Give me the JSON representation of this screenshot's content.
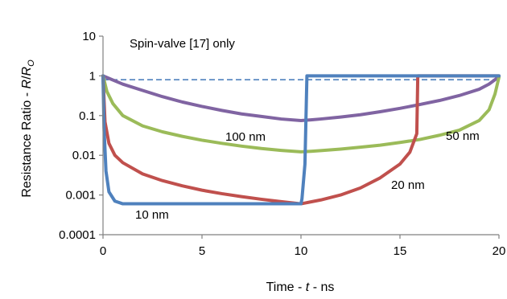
{
  "chart_data": {
    "type": "line",
    "title": "",
    "xlabel_parts": [
      "Time - ",
      "t",
      " - ns"
    ],
    "ylabel_parts": [
      "Resistance  Ratio - ",
      "R",
      "/",
      "R",
      "O"
    ],
    "x_range": [
      0,
      20
    ],
    "y_range": [
      0.0001,
      10
    ],
    "y_scale": "log",
    "x_ticks": [
      "0",
      "5",
      "10",
      "15",
      "20"
    ],
    "y_ticks": [
      "0.0001",
      "0.001",
      "0.01",
      "0.1",
      "1",
      "10"
    ],
    "grid": false,
    "legend": "none",
    "annotations": {
      "spin_valve": "Spin-valve  [17] only",
      "label_100": "100 nm",
      "label_50": "50 nm",
      "label_20": "20 nm",
      "label_10": "10 nm"
    },
    "reference_line": {
      "name": "Spin-valve [17] only",
      "style": "dashed",
      "color": "#4f81bd",
      "x": [
        0,
        20
      ],
      "y": [
        0.8,
        0.8
      ]
    },
    "series": [
      {
        "label": "100 nm",
        "color": "#8064a2",
        "x": [
          0,
          1,
          2,
          3,
          4,
          5,
          6,
          7,
          8,
          9,
          10,
          10.5,
          11,
          12,
          13,
          14,
          15,
          16,
          17,
          18,
          19,
          19.5,
          20
        ],
        "y": [
          1,
          0.62,
          0.43,
          0.3,
          0.22,
          0.17,
          0.135,
          0.11,
          0.095,
          0.082,
          0.075,
          0.078,
          0.082,
          0.092,
          0.105,
          0.125,
          0.152,
          0.19,
          0.24,
          0.32,
          0.46,
          0.62,
          0.95
        ]
      },
      {
        "label": "50 nm",
        "color": "#9bbb59",
        "x": [
          0,
          0.2,
          0.5,
          1,
          2,
          3,
          4,
          5,
          6,
          7,
          8,
          9,
          10,
          10.5,
          11,
          12,
          13,
          14,
          15,
          16,
          17,
          18,
          19,
          19.5,
          19.8,
          20
        ],
        "y": [
          1,
          0.4,
          0.2,
          0.1,
          0.055,
          0.039,
          0.03,
          0.024,
          0.02,
          0.017,
          0.0148,
          0.0133,
          0.0122,
          0.0126,
          0.0131,
          0.0143,
          0.016,
          0.018,
          0.021,
          0.025,
          0.032,
          0.043,
          0.075,
          0.14,
          0.35,
          0.92
        ]
      },
      {
        "label": "20 nm",
        "color": "#c0504d",
        "x": [
          0,
          0.1,
          0.3,
          0.6,
          1,
          2,
          3,
          4,
          5,
          6,
          7,
          8,
          9,
          10,
          11,
          12,
          13,
          14,
          15,
          15.5,
          15.85,
          15.9,
          16,
          17,
          18,
          19,
          20
        ],
        "y": [
          1,
          0.07,
          0.02,
          0.01,
          0.0065,
          0.0034,
          0.0023,
          0.0017,
          0.00132,
          0.00108,
          0.00091,
          0.00078,
          0.00068,
          0.0006,
          0.00075,
          0.001,
          0.0015,
          0.0027,
          0.006,
          0.012,
          0.035,
          1,
          1,
          1,
          1,
          1,
          1
        ]
      },
      {
        "label": "10 nm",
        "color": "#4f81bd",
        "x": [
          0,
          0.05,
          0.15,
          0.3,
          0.6,
          1,
          2,
          4,
          6,
          8,
          10,
          10.05,
          10.2,
          10.3,
          11,
          13,
          15,
          17,
          20
        ],
        "y": [
          1,
          0.05,
          0.004,
          0.0012,
          0.0007,
          0.0006,
          0.0006,
          0.0006,
          0.0006,
          0.0006,
          0.0006,
          0.0008,
          0.006,
          1,
          1,
          1,
          1,
          1,
          1
        ]
      }
    ]
  }
}
